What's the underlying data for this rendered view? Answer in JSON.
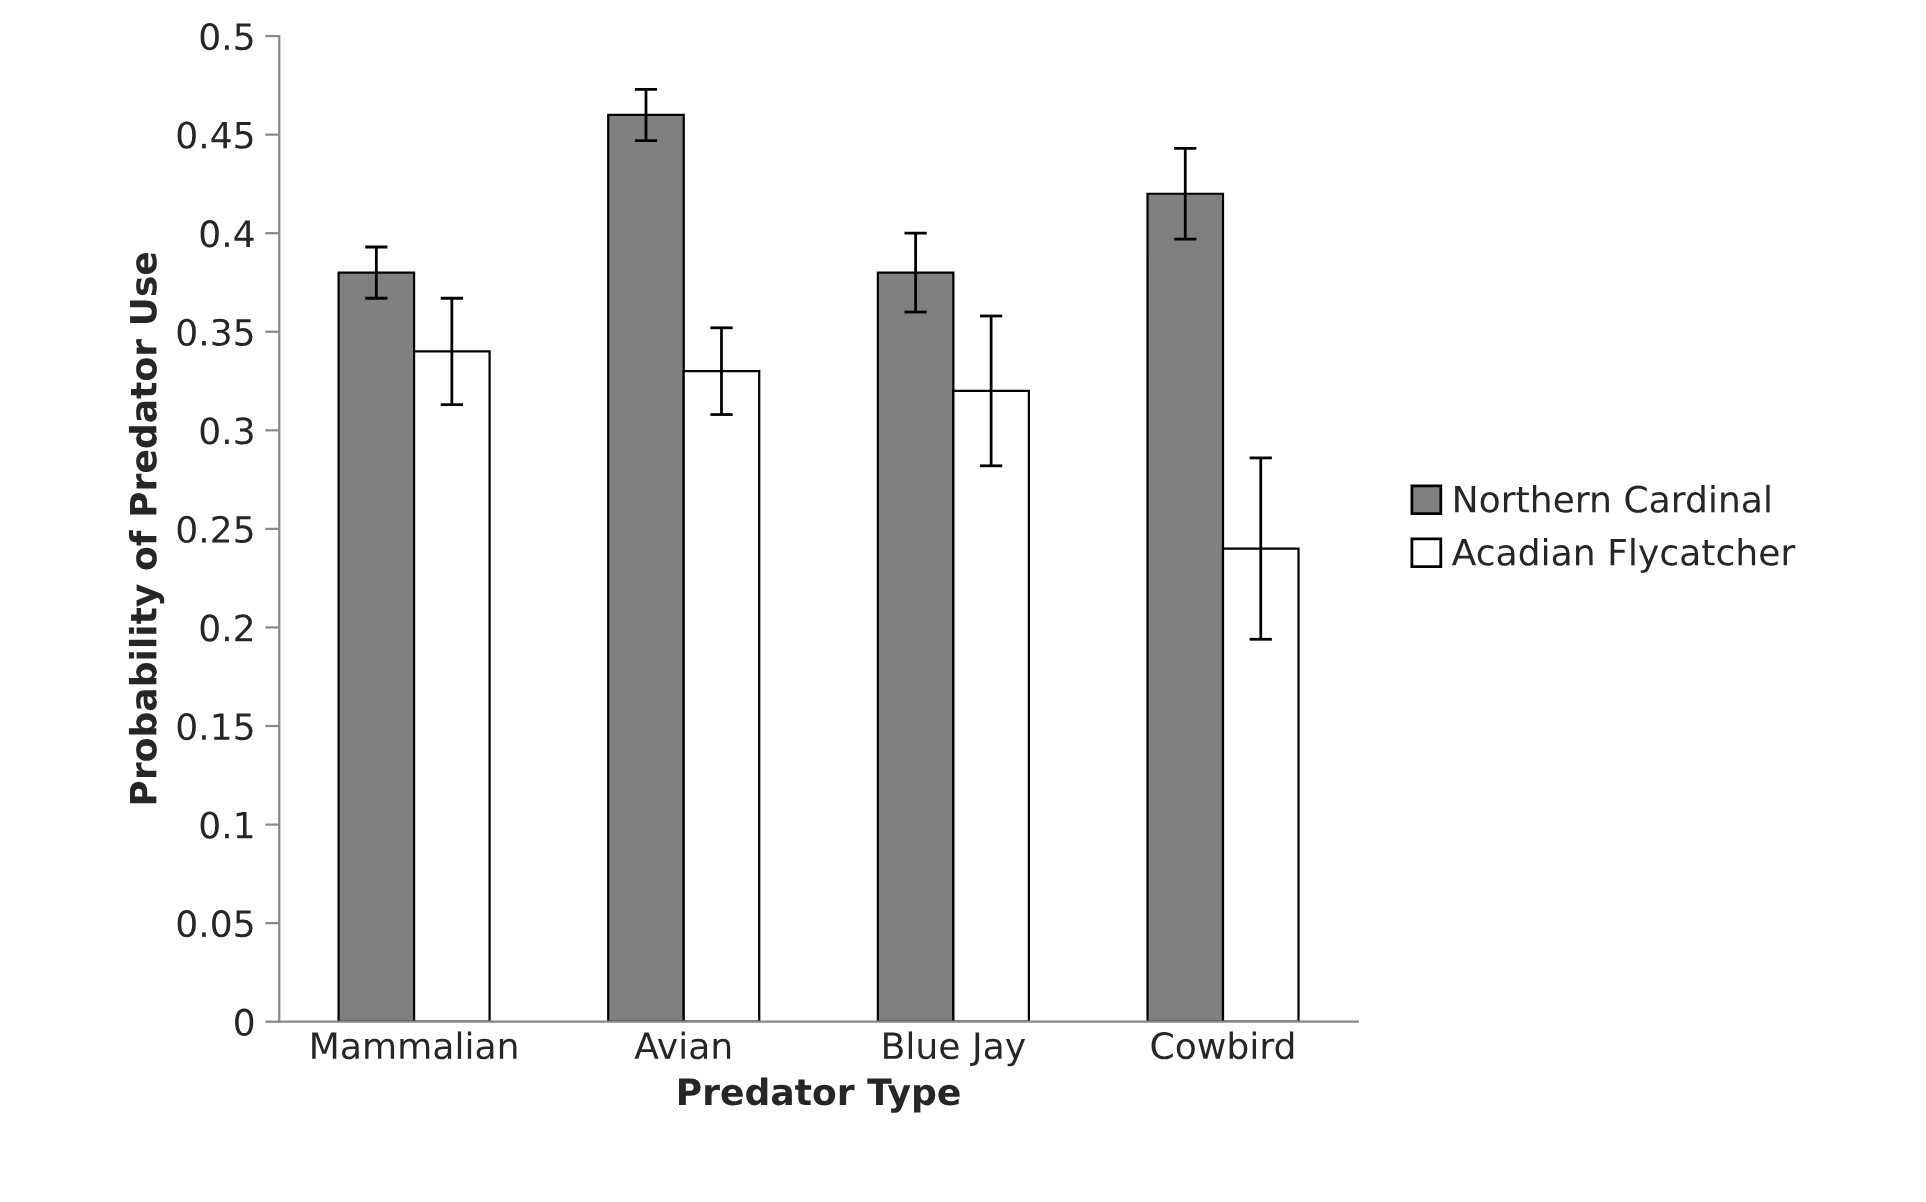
{
  "chart_data": {
    "type": "bar",
    "xlabel": "Predator Type",
    "ylabel": "Probability of Predator Use",
    "categories": [
      "Mammalian",
      "Avian",
      "Blue Jay",
      "Cowbird"
    ],
    "series": [
      {
        "name": "Northern Cardinal",
        "color": "#808080",
        "values": [
          0.38,
          0.46,
          0.38,
          0.42
        ],
        "errors": [
          0.013,
          0.013,
          0.02,
          0.023
        ]
      },
      {
        "name": "Acadian Flycatcher",
        "color": "#ffffff",
        "values": [
          0.34,
          0.33,
          0.32,
          0.24
        ],
        "errors": [
          0.027,
          0.022,
          0.038,
          0.046
        ]
      }
    ],
    "ylim": [
      0,
      0.5
    ],
    "yticks": [
      0,
      0.05,
      0.1,
      0.15,
      0.2,
      0.25,
      0.3,
      0.35,
      0.4,
      0.45,
      0.5
    ],
    "grid": false,
    "legend": "right"
  }
}
